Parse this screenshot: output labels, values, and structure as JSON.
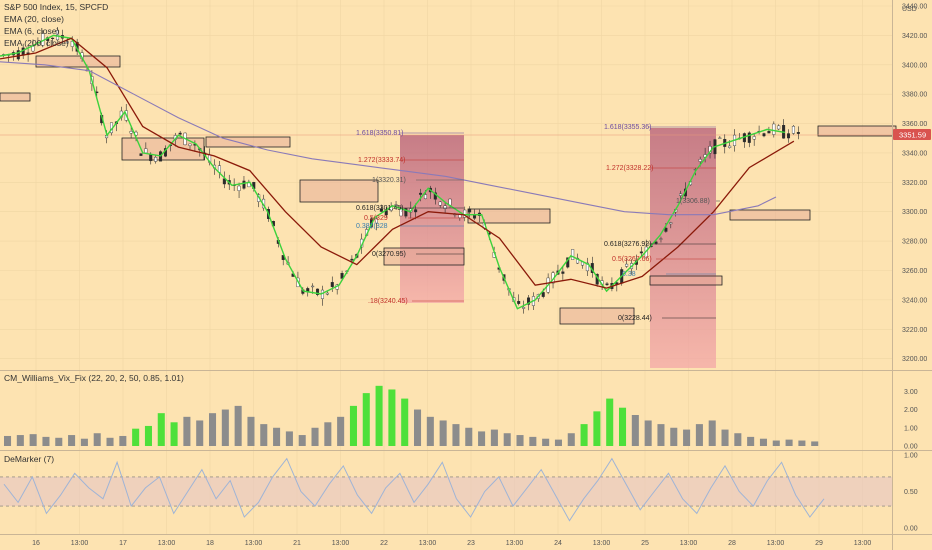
{
  "header": {
    "symbol": "S&P 500 Index, 15, SPCFD",
    "ema20": "EMA (20, close)",
    "ema6": "EMA (6, close)",
    "ema200": "EMA (200, close)",
    "currency": "USD"
  },
  "price_tag": "3351.59",
  "indicators": {
    "vix_fix": "CM_Williams_Vix_Fix (22, 20, 2, 50, 0.85, 1.01)",
    "demarker": "DeMarker (7)"
  },
  "colors": {
    "background": "#fde3b1",
    "ema_fast": "#3cd23c",
    "ema_mid": "#8b1a0a",
    "ema_slow": "#8a7ab8",
    "candle": "#2a2a2a",
    "vix_bar": "#8c8c8c",
    "vix_bar_highlight": "#4ee03a",
    "demarker_line": "#9fb4d6",
    "demarker_band": "#e8c9c0",
    "price_tag": "#d9534f",
    "fib_zone_top": "#b45a78",
    "fib_zone_bottom": "#f4a8a8"
  },
  "chart_data": [
    {
      "type": "line",
      "panel": "price",
      "title": "S&P 500 Index, 15, SPCFD",
      "ylabel": "USD",
      "ylim": [
        3195,
        3440
      ],
      "y_ticks": [
        "3440.00",
        "3420.00",
        "3400.00",
        "3380.00",
        "3360.00",
        "3340.00",
        "3320.00",
        "3300.00",
        "3280.00",
        "3260.00",
        "3240.00",
        "3220.00",
        "3200.00"
      ],
      "x_ticks": [
        "16",
        "13:00",
        "17",
        "13:00",
        "18",
        "13:00",
        "21",
        "13:00",
        "22",
        "13:00",
        "23",
        "13:00",
        "24",
        "13:00",
        "25",
        "13:00",
        "28",
        "13:00",
        "29",
        "13:00"
      ],
      "x_domain": [
        0,
        100
      ],
      "series": [
        {
          "name": "EMA (20, close)",
          "x": [
            0,
            2,
            4,
            6,
            8,
            10,
            12,
            14,
            16,
            18,
            20,
            22,
            24,
            26,
            28,
            30,
            32,
            34,
            36,
            38,
            40,
            42,
            44,
            46,
            48,
            50,
            52,
            54,
            56,
            58,
            60,
            62,
            64,
            66,
            68,
            70,
            72,
            74,
            76,
            78,
            80,
            82,
            84,
            86,
            88
          ],
          "y": [
            3406,
            3408,
            3414,
            3420,
            3418,
            3396,
            3352,
            3368,
            3340,
            3338,
            3352,
            3346,
            3330,
            3318,
            3320,
            3300,
            3268,
            3246,
            3244,
            3250,
            3270,
            3296,
            3304,
            3300,
            3316,
            3306,
            3298,
            3298,
            3262,
            3234,
            3240,
            3254,
            3270,
            3264,
            3246,
            3258,
            3270,
            3284,
            3304,
            3328,
            3344,
            3348,
            3352,
            3356,
            3354
          ]
        },
        {
          "name": "EMA (6, close)",
          "x": [
            0,
            4,
            8,
            12,
            16,
            20,
            24,
            28,
            32,
            36,
            40,
            44,
            48,
            52,
            56,
            60,
            64,
            68,
            72,
            76,
            80,
            84,
            89
          ],
          "y": [
            3404,
            3408,
            3418,
            3398,
            3358,
            3344,
            3338,
            3328,
            3300,
            3276,
            3264,
            3288,
            3300,
            3298,
            3282,
            3250,
            3254,
            3248,
            3256,
            3276,
            3300,
            3330,
            3348
          ]
        },
        {
          "name": "EMA (200, close)",
          "x": [
            0,
            5,
            10,
            15,
            20,
            25,
            30,
            35,
            40,
            45,
            50,
            55,
            60,
            65,
            70,
            75,
            80,
            85,
            87
          ],
          "y": [
            3402,
            3400,
            3396,
            3380,
            3364,
            3350,
            3342,
            3336,
            3332,
            3328,
            3324,
            3318,
            3312,
            3306,
            3300,
            3298,
            3298,
            3304,
            3310
          ]
        }
      ],
      "fib_levels": [
        {
          "label": "1.618(3350.81)"
        },
        {
          "label": "1.272(3333.74)"
        },
        {
          "label": "1(3320.31)"
        },
        {
          "label": "0.618(3301.45)"
        },
        {
          "label": "0.5(329"
        },
        {
          "label": "0.382(328"
        },
        {
          "label": "0(3270.95)"
        },
        {
          "label": ".18(3240.45)"
        },
        {
          "label": "1.618(3355.36)"
        },
        {
          "label": "1.272(3328.22)"
        },
        {
          "label": "1(3306.88)"
        },
        {
          "label": "0.618(3276.92)"
        },
        {
          "label": "0.5(3267.66)"
        },
        {
          "label": "0.38"
        },
        {
          "label": "0(3228.44)"
        }
      ],
      "price_tag": 3351.59
    },
    {
      "type": "bar",
      "panel": "vix_fix",
      "title": "CM_Williams_Vix_Fix (22, 20, 2, 50, 0.85, 1.01)",
      "ylim": [
        0,
        3.4
      ],
      "y_ticks": [
        "3.00",
        "2.00",
        "1.00",
        "0.00"
      ],
      "values": [
        0.55,
        0.6,
        0.65,
        0.5,
        0.45,
        0.6,
        0.4,
        0.7,
        0.45,
        0.55,
        0.95,
        1.1,
        1.8,
        1.3,
        1.6,
        1.4,
        1.8,
        2.0,
        2.2,
        1.6,
        1.2,
        1.0,
        0.8,
        0.6,
        1.0,
        1.3,
        1.6,
        2.2,
        2.9,
        3.3,
        3.1,
        2.6,
        2.0,
        1.6,
        1.4,
        1.2,
        1.0,
        0.8,
        0.9,
        0.7,
        0.6,
        0.5,
        0.4,
        0.35,
        0.7,
        1.2,
        1.9,
        2.6,
        2.1,
        1.7,
        1.4,
        1.2,
        1.0,
        0.9,
        1.2,
        1.4,
        0.9,
        0.7,
        0.5,
        0.4,
        0.3,
        0.35,
        0.3,
        0.25
      ],
      "highlight_ranges": [
        [
          10,
          13
        ],
        [
          27,
          31
        ],
        [
          45,
          48
        ]
      ]
    },
    {
      "type": "line",
      "panel": "demarker",
      "title": "DeMarker (7)",
      "ylim": [
        0,
        1
      ],
      "y_ticks": [
        "1.00",
        "0.50",
        "0.00"
      ],
      "band": [
        0.3,
        0.7
      ],
      "values": [
        0.6,
        0.35,
        0.7,
        0.2,
        0.45,
        0.75,
        0.55,
        0.4,
        0.9,
        0.3,
        0.55,
        0.7,
        0.2,
        0.5,
        0.8,
        0.4,
        0.65,
        0.15,
        0.35,
        0.7,
        0.95,
        0.5,
        0.3,
        0.6,
        0.85,
        0.45,
        0.2,
        0.55,
        0.75,
        0.35,
        0.6,
        0.9,
        0.4,
        0.15,
        0.5,
        0.7,
        0.3,
        0.55,
        0.8,
        0.45,
        0.1,
        0.4,
        0.65,
        0.95,
        0.6,
        0.25,
        0.5,
        0.75,
        0.4,
        0.2,
        0.55,
        0.85,
        0.5,
        0.3,
        0.65,
        0.9,
        0.45,
        0.15,
        0.4
      ]
    }
  ]
}
